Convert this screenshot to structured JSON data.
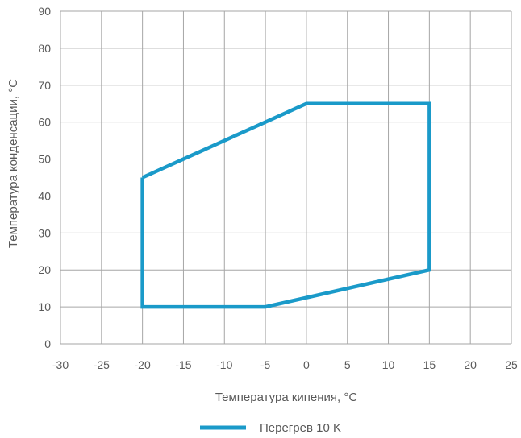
{
  "chart_data": {
    "type": "line",
    "title": "",
    "xlabel": "Температура кипения, °C",
    "ylabel": "Температура конденсации, °C",
    "xlim": [
      -30,
      25
    ],
    "ylim": [
      0,
      90
    ],
    "xticks": [
      -30,
      -25,
      -20,
      -15,
      -10,
      -5,
      0,
      5,
      10,
      15,
      20,
      25
    ],
    "yticks": [
      0,
      10,
      20,
      30,
      40,
      50,
      60,
      70,
      80,
      90
    ],
    "grid": true,
    "legend_position": "bottom",
    "series": [
      {
        "name": "Перегрев 10 K",
        "color": "#1a9ac9",
        "closed": true,
        "x": [
          -20,
          0,
          15,
          15,
          -5,
          -20,
          -20
        ],
        "y": [
          45,
          65,
          65,
          20,
          10,
          10,
          45
        ]
      }
    ]
  },
  "colors": {
    "grid": "#a6a6a6",
    "axis_text": "#595959",
    "series": "#1a9ac9"
  }
}
